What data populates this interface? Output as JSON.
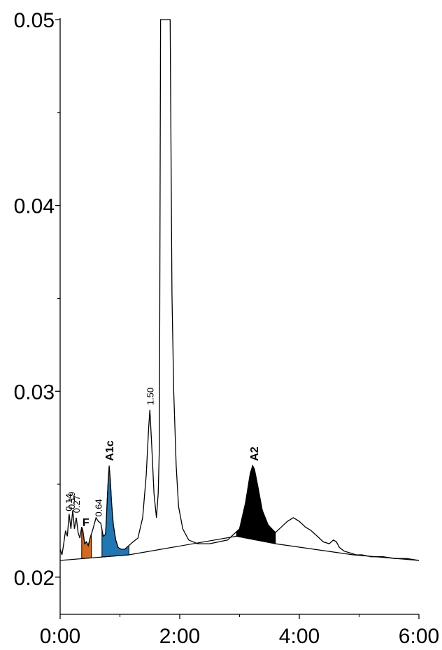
{
  "chart_data": {
    "type": "line",
    "title": "",
    "xlabel": "",
    "ylabel": "",
    "xlim": [
      0,
      6
    ],
    "ylim": [
      0.018,
      0.05
    ],
    "y_ticks": [
      0.02,
      0.03,
      0.04,
      0.05
    ],
    "y_tick_labels": [
      "0.02",
      "0.03",
      "0.04",
      "0.05"
    ],
    "x_ticks": [
      0,
      2,
      4,
      6
    ],
    "x_tick_labels": [
      "0:00",
      "2:00",
      "4:00",
      "6:00"
    ],
    "grid": false,
    "series": [
      {
        "x": [
          0,
          0.03,
          0.06,
          0.09,
          0.12,
          0.15,
          0.18,
          0.21,
          0.24,
          0.27,
          0.3,
          0.33,
          0.36,
          0.38,
          0.41,
          0.44,
          0.47,
          0.5,
          0.55,
          0.6,
          0.64,
          0.68,
          0.72,
          0.76,
          0.8,
          0.82,
          0.84,
          0.86,
          0.89,
          0.93,
          0.97,
          1.02,
          1.08,
          1.15,
          1.22,
          1.3,
          1.38,
          1.44,
          1.48,
          1.5,
          1.53,
          1.57,
          1.61,
          1.64,
          1.66,
          1.68,
          1.7,
          1.72,
          1.82,
          1.84,
          1.87,
          1.9,
          1.94,
          1.98,
          2.05,
          2.15,
          2.3,
          2.5,
          2.8,
          3.0,
          3.1,
          3.18,
          3.22,
          3.25,
          3.3,
          3.38,
          3.48,
          3.6,
          3.7,
          3.8,
          3.9,
          4.0,
          4.1,
          4.2,
          4.3,
          4.4,
          4.5,
          4.57,
          4.62,
          4.67,
          4.75,
          4.85,
          4.95,
          5.05,
          5.2,
          5.4,
          5.6,
          5.8,
          6.0
        ],
        "y": [
          0.0215,
          0.0212,
          0.0218,
          0.0225,
          0.0222,
          0.0234,
          0.0226,
          0.0236,
          0.0226,
          0.0232,
          0.0224,
          0.0221,
          0.0227,
          0.0225,
          0.0218,
          0.0219,
          0.0217,
          0.0221,
          0.0226,
          0.0232,
          0.023,
          0.0229,
          0.0222,
          0.0223,
          0.025,
          0.026,
          0.0252,
          0.024,
          0.0228,
          0.022,
          0.0216,
          0.0215,
          0.0215,
          0.0217,
          0.0219,
          0.0221,
          0.0232,
          0.0255,
          0.028,
          0.029,
          0.0272,
          0.0245,
          0.0232,
          0.0245,
          0.027,
          0.05,
          0.05,
          0.05,
          0.05,
          0.05,
          0.0352,
          0.03,
          0.026,
          0.0238,
          0.0226,
          0.022,
          0.0218,
          0.0218,
          0.022,
          0.0226,
          0.024,
          0.0256,
          0.026,
          0.0258,
          0.025,
          0.0236,
          0.0228,
          0.0224,
          0.0227,
          0.023,
          0.0232,
          0.023,
          0.0227,
          0.0225,
          0.0222,
          0.0219,
          0.0218,
          0.022,
          0.0219,
          0.0216,
          0.0214,
          0.0213,
          0.0212,
          0.0212,
          0.0211,
          0.0211,
          0.021,
          0.021,
          0.0209
        ]
      }
    ],
    "baseline": {
      "x": [
        0,
        1.15,
        2.95,
        3.6,
        4.9,
        6.0
      ],
      "y": [
        0.0209,
        0.0212,
        0.0222,
        0.0218,
        0.0212,
        0.0209
      ]
    },
    "filled_peaks": [
      {
        "label": "F",
        "color": "#d2691e",
        "x_start": 0.36,
        "x_end": 0.52
      },
      {
        "label": "A1c",
        "color": "#1f77b4",
        "x_start": 0.7,
        "x_end": 1.15
      },
      {
        "label": "A2",
        "color": "#000000",
        "x_start": 2.95,
        "x_end": 3.6
      }
    ],
    "annotations": [
      {
        "text": "A1c",
        "x": 0.83,
        "y": 0.0261,
        "bold": true
      },
      {
        "text": "1.50",
        "x": 1.5,
        "y": 0.0291,
        "bold": false
      },
      {
        "text": "A2",
        "x": 3.25,
        "y": 0.0261,
        "bold": true
      },
      {
        "text": "F",
        "x": 0.42,
        "y": 0.0226,
        "bold": true
      },
      {
        "text": "0.64",
        "x": 0.64,
        "y": 0.0231,
        "bold": false
      },
      {
        "text": "0.27",
        "x": 0.27,
        "y": 0.0233,
        "bold": false
      },
      {
        "text": "0.19",
        "x": 0.19,
        "y": 0.0235,
        "bold": false
      },
      {
        "text": "0.14",
        "x": 0.14,
        "y": 0.0234,
        "bold": false
      }
    ]
  }
}
